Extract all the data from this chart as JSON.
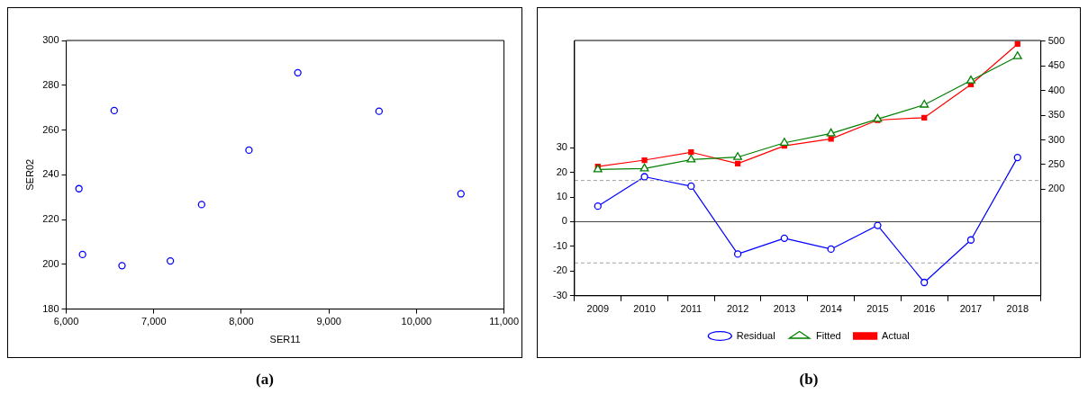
{
  "chart_data": [
    {
      "type": "scatter",
      "xlabel": "SER11",
      "ylabel": "SER02",
      "annotations": [
        "(a)"
      ],
      "color": "#0000ff",
      "marker": "circle",
      "legend": false,
      "grid": false,
      "x": [
        6145,
        6186,
        6548,
        6637,
        7189,
        7546,
        8087,
        8645,
        9573,
        10508
      ],
      "values": [
        233.8,
        204.4,
        268.7,
        199.4,
        201.5,
        226.7,
        251,
        285.6,
        268.4,
        231.5
      ],
      "xlim": [
        6000,
        11000
      ],
      "xticks": [
        {
          "value": 6000,
          "label": "6,000"
        },
        {
          "value": 7000,
          "label": "7,000"
        },
        {
          "value": 8000,
          "label": "8,000"
        },
        {
          "value": 9000,
          "label": "9,000"
        },
        {
          "value": 10000,
          "label": "10,000"
        },
        {
          "value": 11000,
          "label": "11,000"
        }
      ],
      "ylim": [
        180,
        300
      ],
      "yticks": [
        180,
        200,
        220,
        240,
        260,
        280,
        300
      ]
    },
    {
      "type": "line",
      "annotations": [
        "(b)"
      ],
      "legend": "bottom",
      "grid": false,
      "categories": [
        "2009",
        "2010",
        "2011",
        "2012",
        "2013",
        "2014",
        "2015",
        "2016",
        "2017",
        "2018"
      ],
      "series": [
        {
          "name": "Residual",
          "color": "#0000ff",
          "marker": "circle",
          "values": [
            6.3,
            18.2,
            14.4,
            -13.1,
            -6.7,
            -11.1,
            -1.5,
            -24.6,
            -7.4,
            26
          ]
        },
        {
          "name": "Actual",
          "color": "#ff0000",
          "marker": "square",
          "axis": "y2",
          "values": [
            246,
            259,
            275,
            252,
            288,
            302,
            340,
            345,
            412,
            494
          ]
        },
        {
          "name": "Fitted",
          "color": "#008000",
          "marker": "triangle",
          "axis": "y2",
          "values": [
            240,
            242,
            260,
            265,
            294,
            313,
            342,
            371,
            420,
            469
          ]
        }
      ],
      "ylim": [
        -30,
        73.4
      ],
      "yticks": [
        -30,
        -20,
        -10,
        0,
        10,
        20,
        30
      ],
      "y2lim": [
        -15.6,
        501.2
      ],
      "y2ticks": [
        200,
        250,
        300,
        350,
        400,
        450,
        500
      ],
      "ref_lines": [
        {
          "axis": "y",
          "value": 0,
          "color": "#404040",
          "line_style": "solid"
        },
        {
          "axis": "y",
          "value": 16.7,
          "color": "#a0a0a0",
          "line_style": "dashed"
        },
        {
          "axis": "y",
          "value": -16.7,
          "color": "#a0a0a0",
          "line_style": "dashed"
        }
      ]
    }
  ]
}
